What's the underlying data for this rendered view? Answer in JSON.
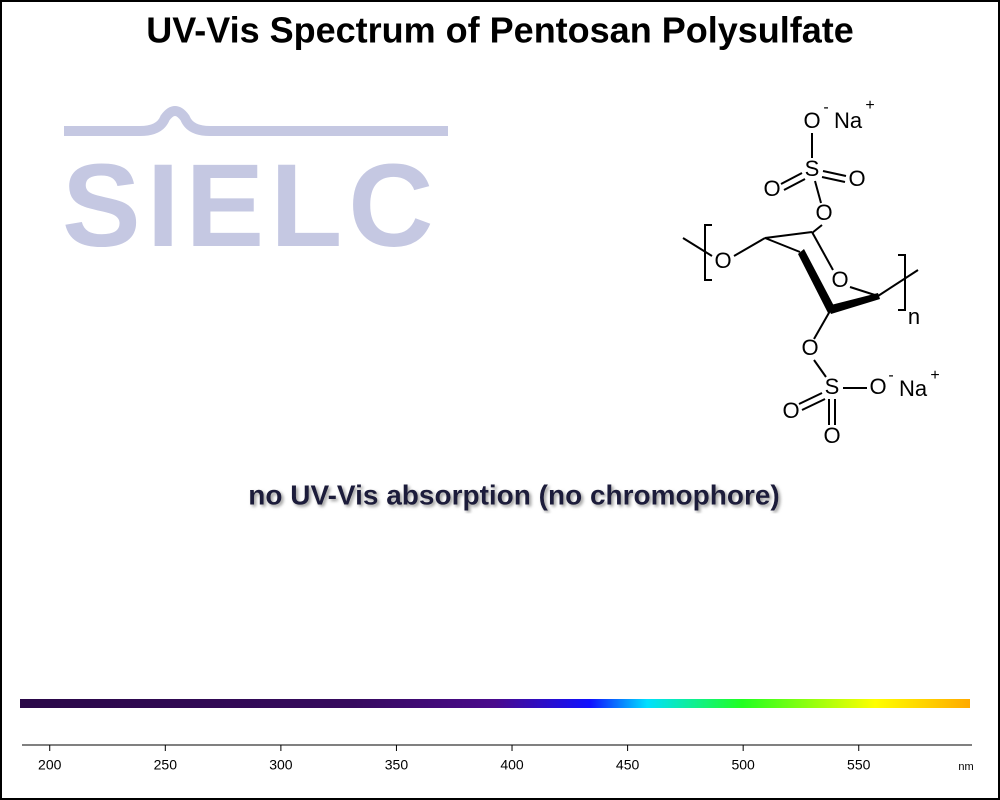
{
  "chart_data": {
    "type": "spectrum",
    "title": "UV-Vis Spectrum of Pentosan Polysulfate",
    "annotation": "no UV-Vis absorption (no chromophore)",
    "watermark": "SIELC",
    "x_label": "nm",
    "xlim": [
      188,
      599
    ],
    "xticks": [
      200,
      250,
      300,
      350,
      400,
      450,
      500,
      550
    ],
    "structure_labels": [
      "O",
      "-",
      "Na",
      "+",
      "S",
      "O",
      "O",
      "O",
      "O",
      "O",
      "n",
      "O",
      "S",
      "O",
      "-",
      "Na",
      "+",
      "O",
      "O"
    ]
  }
}
